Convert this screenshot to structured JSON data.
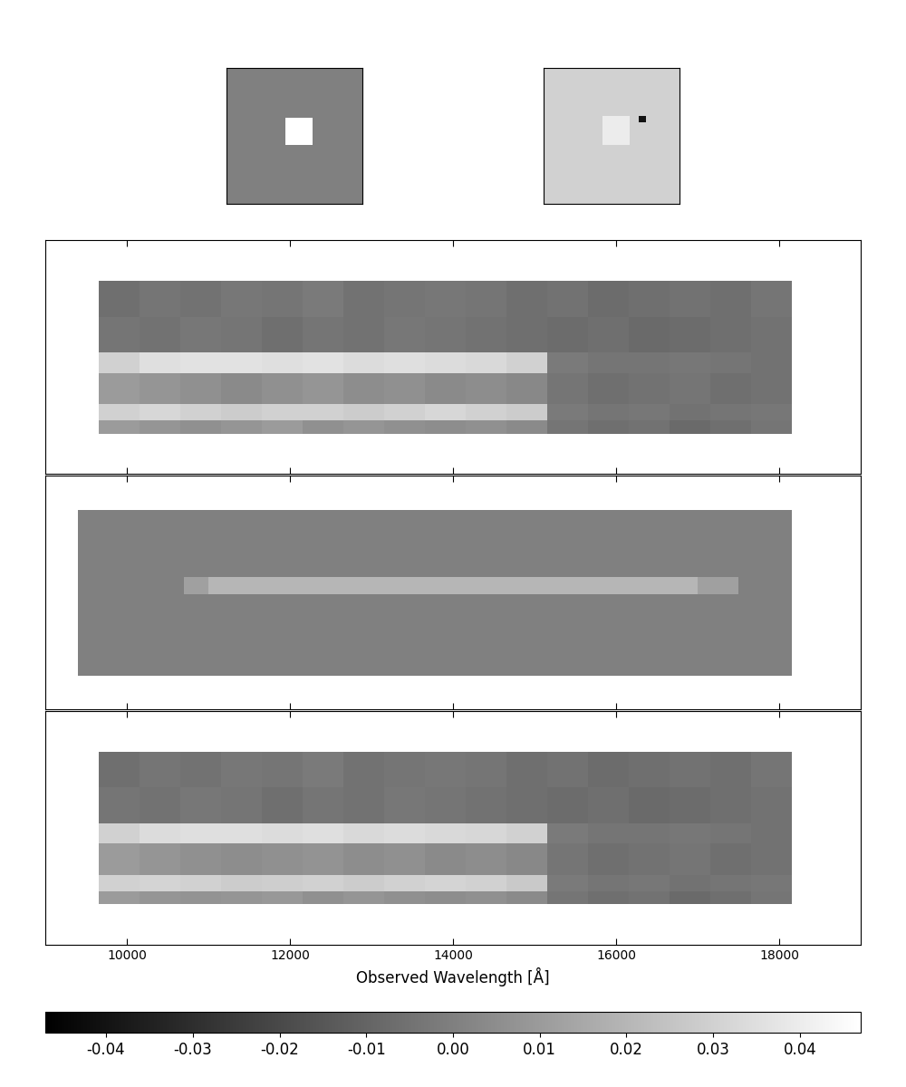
{
  "chart_data": [
    {
      "type": "heatmap",
      "tick_labels": false,
      "xlim": [
        0,
        30
      ],
      "ylim": [
        0,
        30
      ],
      "x_edges": [
        0,
        13,
        19,
        30
      ],
      "y_edges": [
        0,
        13,
        19,
        30
      ],
      "cells": [
        [
          0,
          0,
          0
        ],
        [
          0,
          0.047,
          0
        ],
        [
          0,
          0,
          0
        ]
      ]
    },
    {
      "type": "heatmap",
      "tick_labels": false,
      "xlim": [
        0,
        30
      ],
      "ylim": [
        0,
        30
      ],
      "x_edges": [
        0,
        13,
        19,
        21,
        22.5,
        30
      ],
      "y_edges": [
        0,
        13,
        18,
        19.5,
        30
      ],
      "cells": [
        [
          0.03,
          0.03,
          0.03,
          0.03,
          0.03
        ],
        [
          0.03,
          0.04,
          0.03,
          0.03,
          0.03
        ],
        [
          0.03,
          0.04,
          0.03,
          -0.04,
          0.03
        ],
        [
          0.03,
          0.03,
          0.03,
          0.03,
          0.03
        ]
      ]
    },
    {
      "type": "heatmap",
      "tick_labels": false,
      "xlim": [
        9000,
        19000
      ],
      "ylim": [
        0,
        52
      ],
      "xticks": [
        10000,
        12000,
        14000,
        16000,
        18000
      ],
      "x_edges": [
        9650,
        10150,
        10650,
        11150,
        11650,
        12150,
        12650,
        13150,
        13650,
        14150,
        14650,
        15150,
        15650,
        16150,
        16650,
        17150,
        17650,
        18150
      ],
      "y_edges": [
        9,
        12,
        15.5,
        22.5,
        27,
        35,
        43
      ],
      "cells": [
        [
          0.01,
          0.008,
          0.006,
          0.008,
          0.01,
          0.006,
          0.008,
          0.006,
          0.005,
          0.006,
          0.004,
          -0.004,
          -0.006,
          -0.005,
          -0.008,
          -0.006,
          -0.004
        ],
        [
          0.03,
          0.032,
          0.03,
          0.028,
          0.03,
          0.03,
          0.028,
          0.03,
          0.032,
          0.03,
          0.028,
          -0.002,
          -0.004,
          -0.003,
          -0.005,
          -0.004,
          -0.003
        ],
        [
          0.01,
          0.008,
          0.006,
          0.004,
          0.006,
          0.008,
          0.005,
          0.006,
          0.004,
          0.005,
          0.003,
          -0.004,
          -0.006,
          -0.005,
          -0.004,
          -0.006,
          -0.005
        ],
        [
          0.03,
          0.035,
          0.036,
          0.036,
          0.035,
          0.036,
          0.034,
          0.035,
          0.034,
          0.033,
          0.03,
          -0.002,
          -0.004,
          -0.004,
          -0.003,
          -0.004,
          -0.005
        ],
        [
          -0.004,
          -0.005,
          -0.003,
          -0.004,
          -0.006,
          -0.004,
          -0.005,
          -0.003,
          -0.004,
          -0.005,
          -0.006,
          -0.007,
          -0.006,
          -0.008,
          -0.007,
          -0.006,
          -0.005
        ],
        [
          -0.006,
          -0.004,
          -0.005,
          -0.003,
          -0.004,
          -0.002,
          -0.005,
          -0.004,
          -0.003,
          -0.004,
          -0.006,
          -0.005,
          -0.007,
          -0.006,
          -0.005,
          -0.006,
          -0.004
        ]
      ]
    },
    {
      "type": "heatmap",
      "tick_labels": false,
      "xlim": [
        9000,
        19000
      ],
      "ylim": [
        0,
        52
      ],
      "xticks": [
        10000,
        12000,
        14000,
        16000,
        18000
      ],
      "x_edges": [
        9400,
        10700,
        11000,
        17000,
        17500,
        18150
      ],
      "y_edges": [
        7.4,
        25.5,
        29.5,
        44.4
      ],
      "cells": [
        [
          0,
          0,
          0,
          0,
          0
        ],
        [
          0,
          0.012,
          0.02,
          0.012,
          0
        ],
        [
          0,
          0,
          0,
          0,
          0
        ]
      ]
    },
    {
      "type": "heatmap",
      "tick_labels": "x",
      "xlabel": "Observed Wavelength [Å]",
      "xlim": [
        9000,
        19000
      ],
      "ylim": [
        0,
        52
      ],
      "xticks": [
        10000,
        12000,
        14000,
        16000,
        18000
      ],
      "x_edges": [
        9650,
        10150,
        10650,
        11150,
        11650,
        12150,
        12650,
        13150,
        13650,
        14150,
        14650,
        15150,
        15650,
        16150,
        16650,
        17150,
        17650,
        18150
      ],
      "y_edges": [
        9,
        12,
        15.5,
        22.5,
        27,
        35,
        43
      ],
      "cells": [
        [
          0.01,
          0.008,
          0.007,
          0.008,
          0.009,
          0.006,
          0.008,
          0.006,
          0.005,
          0.006,
          0.004,
          -0.004,
          -0.006,
          -0.005,
          -0.008,
          -0.006,
          -0.004
        ],
        [
          0.03,
          0.031,
          0.03,
          0.028,
          0.029,
          0.03,
          0.028,
          0.03,
          0.031,
          0.03,
          0.027,
          -0.002,
          -0.004,
          -0.003,
          -0.005,
          -0.004,
          -0.003
        ],
        [
          0.01,
          0.008,
          0.006,
          0.005,
          0.006,
          0.007,
          0.005,
          0.006,
          0.004,
          0.005,
          0.003,
          -0.004,
          -0.006,
          -0.005,
          -0.004,
          -0.006,
          -0.005
        ],
        [
          0.03,
          0.034,
          0.035,
          0.035,
          0.034,
          0.035,
          0.033,
          0.034,
          0.033,
          0.032,
          0.03,
          -0.002,
          -0.004,
          -0.004,
          -0.003,
          -0.004,
          -0.005
        ],
        [
          -0.004,
          -0.005,
          -0.003,
          -0.004,
          -0.006,
          -0.004,
          -0.005,
          -0.003,
          -0.004,
          -0.005,
          -0.006,
          -0.007,
          -0.006,
          -0.008,
          -0.007,
          -0.006,
          -0.005
        ],
        [
          -0.006,
          -0.004,
          -0.005,
          -0.003,
          -0.004,
          -0.002,
          -0.005,
          -0.004,
          -0.003,
          -0.004,
          -0.006,
          -0.005,
          -0.007,
          -0.006,
          -0.005,
          -0.006,
          -0.004
        ]
      ],
      "colorbar": {
        "range": [
          -0.047,
          0.047
        ],
        "ticks": [
          -0.04,
          -0.03,
          -0.02,
          -0.01,
          {
            "value": 0.0,
            "label": "0.00"
          },
          0.01,
          0.02,
          0.03,
          0.04
        ]
      }
    }
  ]
}
